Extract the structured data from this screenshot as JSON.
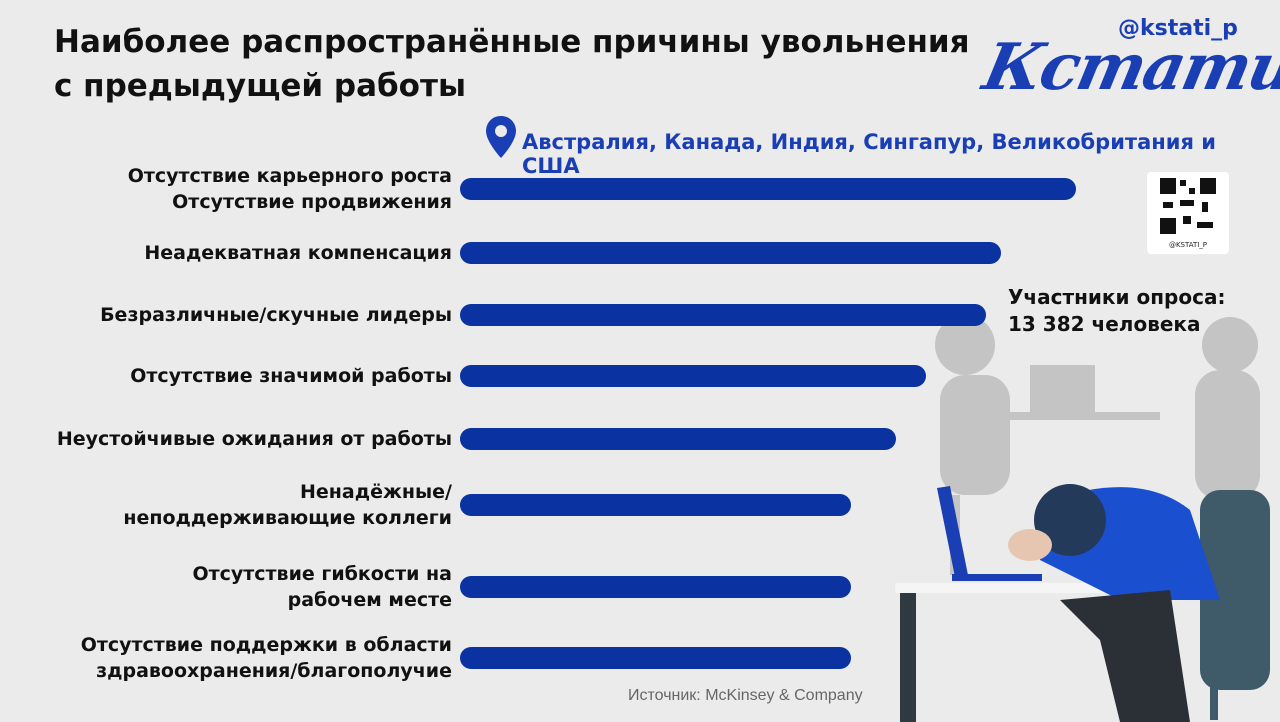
{
  "handle": "@kstati_p",
  "logo": "Кстати,",
  "qr_label": "@KSTATI_P",
  "participants": "Участники опроса:\n13 382 человека",
  "source": "Источник: McKinsey & Company",
  "chart_data": {
    "type": "bar",
    "orientation": "horizontal",
    "title": "Наиболее распространённые причины увольнения\nс  предыдущей работы",
    "subtitle": "Австралия, Канада, Индия, Сингапур, Великобритания и США",
    "categories": [
      "Отсутствие карьерного роста\nОтсутствие продвижения",
      "Неадекватная компенсация",
      "Безразличные/скучные лидеры",
      "Отсутствие значимой работы",
      "Неустойчивые ожидания от работы",
      "Ненадёжные/\nнеподдерживающие коллеги",
      "Отсутствие гибкости на\nрабочем месте",
      "Отсутствие поддержки в области\nздравоохранения/благополучие"
    ],
    "values": [
      41,
      36,
      35,
      31,
      29,
      26,
      26,
      26
    ],
    "color": "#0a32a0"
  }
}
